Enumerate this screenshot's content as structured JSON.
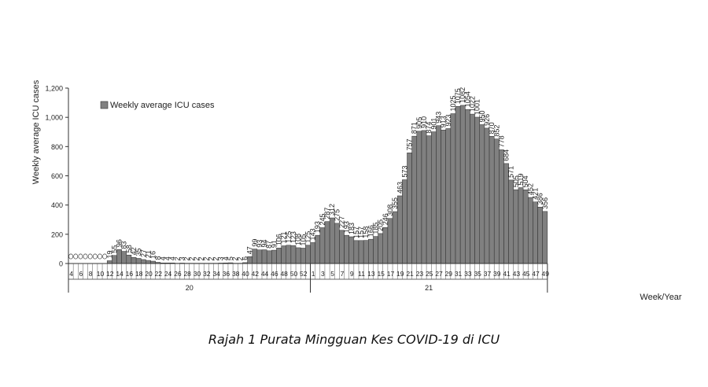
{
  "chart_data": {
    "type": "bar",
    "ylabel": "Weekly average ICU cases",
    "xlabel": "Week/Year",
    "ylim": [
      0,
      1200
    ],
    "yticks": [
      0,
      200,
      400,
      600,
      800,
      1000,
      1200
    ],
    "ytick_labels": [
      "0",
      "200",
      "400",
      "600",
      "800",
      "1,000",
      "1,200"
    ],
    "grid": false,
    "legend": {
      "position": "top-left",
      "entries": [
        "Weekly average ICU cases"
      ]
    },
    "series": [
      {
        "name": "Weekly average ICU cases",
        "color": "#808080",
        "weeks2020": [
          4,
          5,
          6,
          7,
          8,
          9,
          10,
          11,
          12,
          13,
          14,
          15,
          16,
          17,
          18,
          19,
          20,
          21,
          22,
          23,
          24,
          25,
          26,
          27,
          28,
          29,
          30,
          31,
          32,
          33,
          34,
          35,
          36,
          37,
          38,
          39,
          40,
          41,
          42,
          43,
          44,
          45,
          46,
          47,
          48,
          49,
          50,
          51,
          52,
          53
        ],
        "values2020": [
          0,
          0,
          0,
          0,
          0,
          0,
          0,
          0,
          19,
          55,
          96,
          83,
          58,
          42,
          35,
          27,
          21,
          16,
          8,
          4,
          4,
          4,
          2,
          3,
          2,
          2,
          2,
          2,
          2,
          2,
          2,
          3,
          4,
          5,
          2,
          2,
          6,
          47,
          99,
          93,
          94,
          87,
          91,
          106,
          121,
          125,
          123,
          108,
          105,
          125
        ],
        "weeks2021": [
          1,
          2,
          3,
          4,
          5,
          6,
          7,
          8,
          9,
          10,
          11,
          12,
          13,
          14,
          15,
          16,
          17,
          18,
          19,
          20,
          21,
          22,
          23,
          24,
          25,
          26,
          27,
          28,
          29,
          30,
          31,
          32,
          33,
          34,
          35,
          36,
          37,
          38,
          39,
          40,
          41,
          42,
          43,
          44,
          45,
          46,
          47,
          48,
          49
        ],
        "values2021": [
          143,
          193,
          245,
          287,
          312,
          275,
          227,
          193,
          183,
          157,
          157,
          158,
          166,
          185,
          205,
          246,
          308,
          355,
          463,
          573,
          757,
          871,
          905,
          910,
          874,
          901,
          943,
          913,
          923,
          1025,
          1075,
          1082,
          1054,
          1022,
          1001,
          950,
          926,
          870,
          852,
          778,
          684,
          571,
          505,
          519,
          504,
          452,
          421,
          386,
          356
        ]
      }
    ],
    "xtick_labels": [
      "4",
      "6",
      "8",
      "10",
      "12",
      "14",
      "16",
      "18",
      "20",
      "22",
      "24",
      "26",
      "28",
      "30",
      "32",
      "34",
      "36",
      "38",
      "40",
      "42",
      "44",
      "46",
      "48",
      "50",
      "52",
      "1",
      "3",
      "5",
      "7",
      "9",
      "11",
      "13",
      "15",
      "17",
      "19",
      "21",
      "23",
      "25",
      "27",
      "29",
      "31",
      "33",
      "35",
      "37",
      "39",
      "41",
      "43",
      "45",
      "47",
      "49"
    ],
    "years": [
      "20",
      "21"
    ]
  },
  "caption": "Rajah 1 Purata Mingguan Kes COVID-19 di ICU"
}
